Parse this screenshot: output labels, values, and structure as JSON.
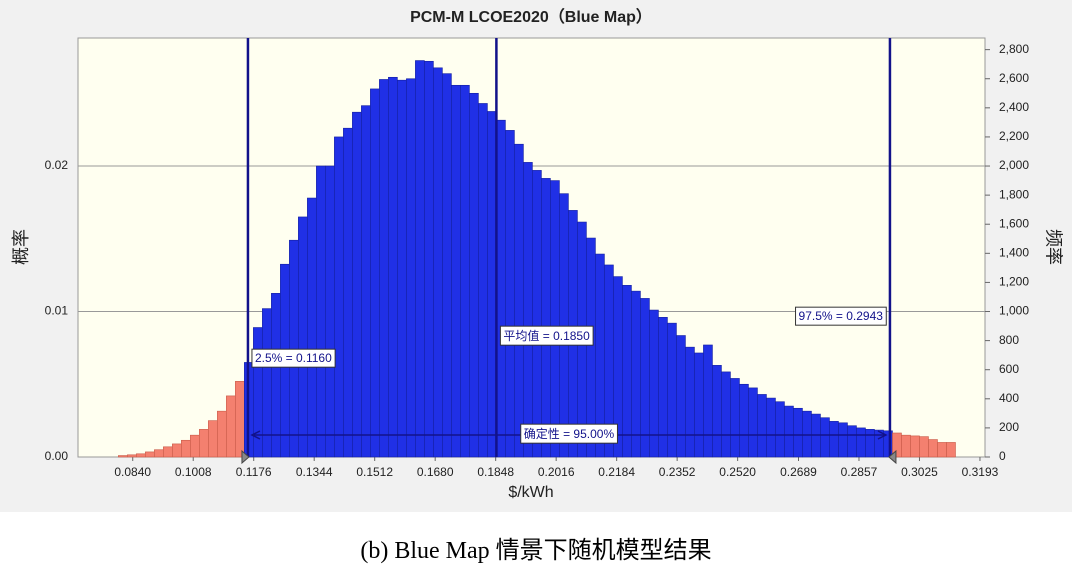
{
  "chart_data": {
    "type": "histogram",
    "title": "PCM-M LCOE2020（Blue Map）",
    "x_label": "$/kWh",
    "y_label": "概率",
    "y2_label": "频率",
    "bins": [
      0.08,
      0.0825,
      0.085,
      0.0875,
      0.09,
      0.0925,
      0.095,
      0.0975,
      0.1,
      0.1025,
      0.105,
      0.1075,
      0.11,
      0.1125,
      0.115,
      0.1175,
      0.12,
      0.1225,
      0.125,
      0.1275,
      0.13,
      0.1325,
      0.135,
      0.1375,
      0.14,
      0.1425,
      0.145,
      0.1475,
      0.15,
      0.1525,
      0.155,
      0.1575,
      0.16,
      0.1625,
      0.165,
      0.1675,
      0.17,
      0.1725,
      0.175,
      0.1775,
      0.18,
      0.1825,
      0.185,
      0.1875,
      0.19,
      0.1925,
      0.195,
      0.1975,
      0.2,
      0.2025,
      0.205,
      0.2075,
      0.21,
      0.2125,
      0.215,
      0.2175,
      0.22,
      0.2225,
      0.225,
      0.2275,
      0.23,
      0.2325,
      0.235,
      0.2375,
      0.24,
      0.2425,
      0.245,
      0.2475,
      0.25,
      0.2525,
      0.255,
      0.2575,
      0.26,
      0.2625,
      0.265,
      0.2675,
      0.27,
      0.2725,
      0.275,
      0.2775,
      0.28,
      0.2825,
      0.285,
      0.2875,
      0.29,
      0.2925,
      0.295,
      0.2975,
      0.3,
      0.3025,
      0.305,
      0.3075,
      0.31,
      0.3125
    ],
    "values": [
      10,
      15,
      22,
      35,
      50,
      70,
      90,
      115,
      150,
      190,
      250,
      315,
      420,
      520,
      650,
      890,
      1020,
      1125,
      1325,
      1490,
      1650,
      1780,
      2000,
      2000,
      2200,
      2260,
      2370,
      2415,
      2530,
      2595,
      2610,
      2590,
      2600,
      2725,
      2720,
      2675,
      2635,
      2555,
      2555,
      2500,
      2430,
      2375,
      2315,
      2245,
      2150,
      2025,
      1970,
      1915,
      1900,
      1810,
      1695,
      1615,
      1505,
      1395,
      1320,
      1240,
      1180,
      1140,
      1090,
      1010,
      960,
      920,
      835,
      755,
      715,
      770,
      630,
      585,
      540,
      500,
      475,
      430,
      405,
      380,
      350,
      335,
      315,
      295,
      270,
      245,
      235,
      215,
      200,
      190,
      185,
      180,
      165,
      150,
      145,
      140,
      120,
      100,
      100
    ],
    "axis": "y2",
    "color": "#2030e6",
    "tail_color": "#f4806f",
    "xlim": [
      0.0688,
      0.3207
    ],
    "xticks": [
      {
        "value": 0.084,
        "label": "0.0840"
      },
      {
        "value": 0.1008,
        "label": "0.1008"
      },
      {
        "value": 0.1176,
        "label": "0.1176"
      },
      {
        "value": 0.1344,
        "label": "0.1344"
      },
      {
        "value": 0.1512,
        "label": "0.1512"
      },
      {
        "value": 0.168,
        "label": "0.1680"
      },
      {
        "value": 0.1848,
        "label": "0.1848"
      },
      {
        "value": 0.2016,
        "label": "0.2016"
      },
      {
        "value": 0.2184,
        "label": "0.2184"
      },
      {
        "value": 0.2352,
        "label": "0.2352"
      },
      {
        "value": 0.252,
        "label": "0.2520"
      },
      {
        "value": 0.2689,
        "label": "0.2689"
      },
      {
        "value": 0.2857,
        "label": "0.2857"
      },
      {
        "value": 0.3025,
        "label": "0.3025"
      },
      {
        "value": 0.3193,
        "label": "0.3193"
      }
    ],
    "ylim": [
      0,
      0.0288
    ],
    "yticks": [
      {
        "value": 0,
        "label": "0.00"
      },
      {
        "value": 0.01,
        "label": "0.01"
      },
      {
        "value": 0.02,
        "label": "0.02"
      }
    ],
    "y2lim": [
      0,
      2880
    ],
    "y2ticks": [
      0,
      200,
      400,
      600,
      800,
      {
        "value": 1000,
        "label": "1,000"
      },
      {
        "value": 1200,
        "label": "1,200"
      },
      {
        "value": 1400,
        "label": "1,400"
      },
      {
        "value": 1600,
        "label": "1,600"
      },
      {
        "value": 1800,
        "label": "1,800"
      },
      {
        "value": 2000,
        "label": "2,000"
      },
      {
        "value": 2200,
        "label": "2,200"
      },
      {
        "value": 2400,
        "label": "2,400"
      },
      {
        "value": 2600,
        "label": "2,600"
      },
      {
        "value": 2800,
        "label": "2,800"
      }
    ],
    "grid": true,
    "annotations": [
      {
        "text": "2.5% = 0.1160",
        "x": 0.116
      },
      {
        "text": "平均值 = 0.1850",
        "x": 0.185
      },
      {
        "text": "97.5% = 0.2943",
        "x": 0.2943
      }
    ],
    "certainty_text": "确定性 = 95.00%"
  },
  "caption": "(b) Blue Map 情景下随机模型结果"
}
